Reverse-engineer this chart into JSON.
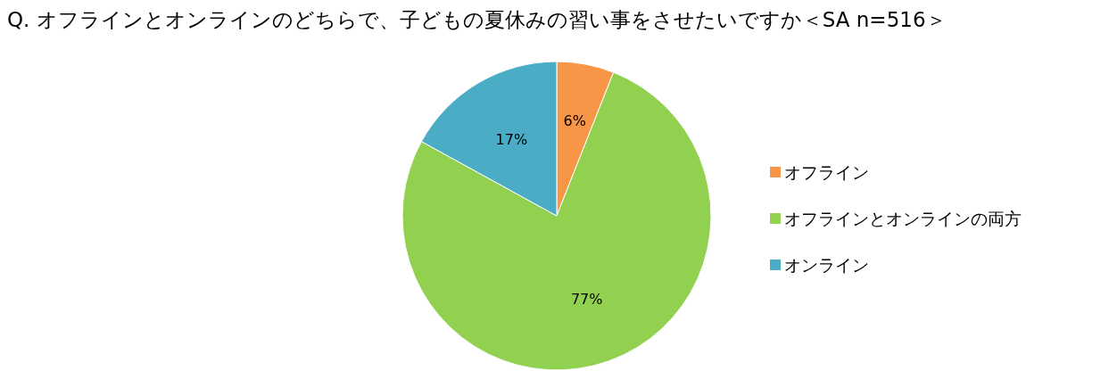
{
  "chart_data": {
    "type": "pie",
    "title": "Q. オフラインとオンラインのどちらで、子どもの夏休みの習い事をさせたいですか＜SA n=516＞",
    "categories": [
      "オフライン",
      "オフラインとオンラインの両方",
      "オンライン"
    ],
    "values": [
      6,
      77,
      17
    ],
    "colors": [
      "#f79646",
      "#92d050",
      "#4bacc6"
    ],
    "value_labels": [
      "6%",
      "77%",
      "17%"
    ],
    "legend": "right"
  }
}
